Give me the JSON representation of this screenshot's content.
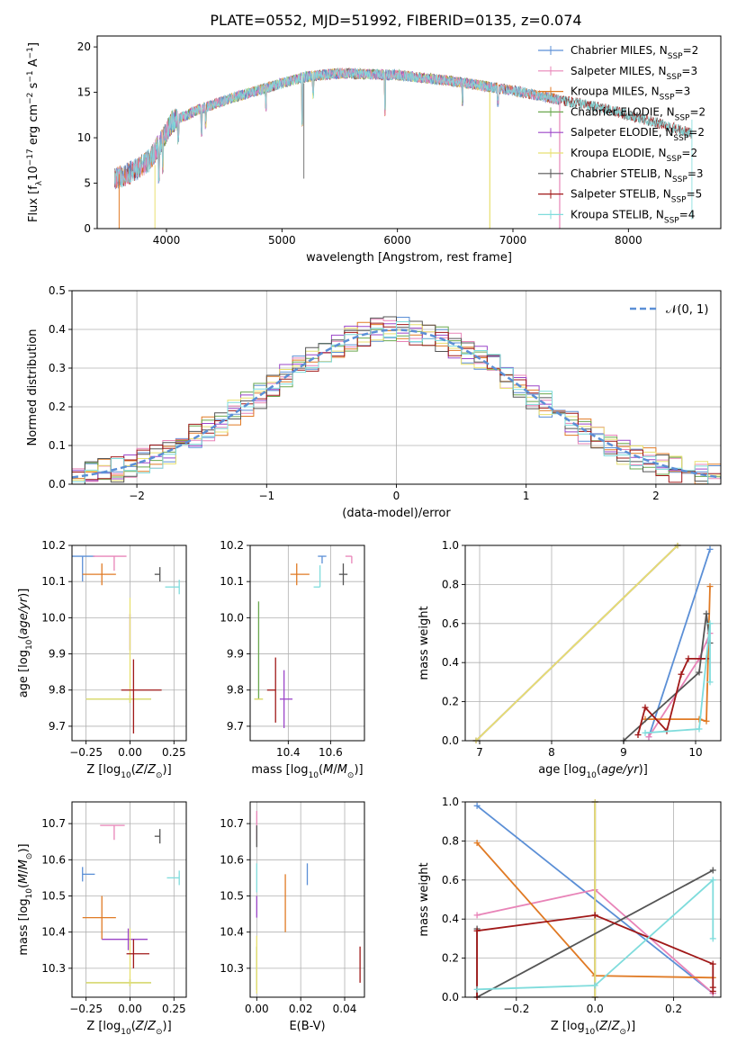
{
  "figure": {
    "title": "PLATE=0552, MJD=51992, FIBERID=0135, z=0.074"
  },
  "colors": {
    "Chabrier MILES": "#5b8fd6",
    "Salpeter MILES": "#e884b8",
    "Kroupa MILES": "#e07a24",
    "Chabrier ELODIE": "#6aa84f",
    "Salpeter ELODIE": "#9b45c8",
    "Kroupa ELODIE": "#e8e070",
    "Chabrier STELIB": "#555555",
    "Salpeter STELIB": "#a01818",
    "Kroupa STELIB": "#7fdcdc",
    "normal": "#5b8fd6"
  },
  "chart_data": [
    {
      "id": "spectrum",
      "type": "line",
      "xlabel": "wavelength [Angstrom, rest frame]",
      "ylabel": "Flux [f_λ10^-17 erg cm^-2 s^-1 A^-1]",
      "xlim": [
        3400,
        8800
      ],
      "ylim": [
        0,
        21.2
      ],
      "xticks": [
        "4000",
        "5000",
        "6000",
        "7000",
        "8000"
      ],
      "yticks": [
        "0",
        "5",
        "10",
        "15",
        "20"
      ],
      "legend_loc": "upper-right",
      "legend": [
        {
          "model": "Chabrier MILES",
          "nssp": "2"
        },
        {
          "model": "Salpeter MILES",
          "nssp": "3"
        },
        {
          "model": "Kroupa MILES",
          "nssp": "3"
        },
        {
          "model": "Chabrier ELODIE",
          "nssp": "2"
        },
        {
          "model": "Salpeter ELODIE",
          "nssp": "2"
        },
        {
          "model": "Kroupa ELODIE",
          "nssp": "2"
        },
        {
          "model": "Chabrier STELIB",
          "nssp": "3"
        },
        {
          "model": "Salpeter STELIB",
          "nssp": "5"
        },
        {
          "model": "Kroupa STELIB",
          "nssp": "4"
        }
      ],
      "continuum": [
        [
          3550,
          5.5
        ],
        [
          3700,
          6.2
        ],
        [
          3850,
          7.5
        ],
        [
          3950,
          9.5
        ],
        [
          4050,
          11.8
        ],
        [
          4300,
          13.2
        ],
        [
          4600,
          14.5
        ],
        [
          5000,
          16.0
        ],
        [
          5200,
          16.7
        ],
        [
          5500,
          17.1
        ],
        [
          6000,
          16.9
        ],
        [
          6500,
          16.2
        ],
        [
          7000,
          15.2
        ],
        [
          7400,
          14.2
        ],
        [
          7800,
          13.2
        ],
        [
          8200,
          11.8
        ],
        [
          8550,
          10.5
        ]
      ]
    },
    {
      "id": "residuals",
      "type": "histogram",
      "xlabel": "(data-model)/error",
      "ylabel": "Normed distribution",
      "xlim": [
        -2.5,
        2.5
      ],
      "ylim": [
        0,
        0.5
      ],
      "xticks": [
        "−2",
        "−1",
        "0",
        "1",
        "2"
      ],
      "yticks": [
        "0.0",
        "0.1",
        "0.2",
        "0.3",
        "0.4",
        "0.5"
      ],
      "legend": [
        "𝒩(0, 1)"
      ],
      "legend_loc": "upper-right",
      "bin_width": 0.1,
      "envelope": "normal(0,1) with scatter ±0.05"
    },
    {
      "id": "age-vs-Z",
      "type": "scatter",
      "xlabel": "Z [log10(Z/Z⊙)]",
      "ylabel": "age [log10(age/yr)]",
      "xlim": [
        -0.33,
        0.32
      ],
      "ylim": [
        9.66,
        10.2
      ],
      "xticks": [
        "−0.25",
        "0.00",
        "0.25"
      ],
      "yticks": [
        "9.7",
        "9.8",
        "9.9",
        "10.0",
        "10.1",
        "10.2"
      ],
      "points": [
        {
          "model": "Chabrier MILES",
          "x": -0.27,
          "y": 10.17,
          "xerr": [
            0.27,
            0.07
          ],
          "yerr": [
            0.07,
            0.0
          ]
        },
        {
          "model": "Salpeter MILES",
          "x": -0.09,
          "y": 10.17,
          "xerr": [
            0.12,
            0.07
          ],
          "yerr": [
            0.04,
            0.0
          ]
        },
        {
          "model": "Kroupa MILES",
          "x": -0.16,
          "y": 10.12,
          "xerr": [
            0.11,
            0.08
          ],
          "yerr": [
            0.03,
            0.03
          ]
        },
        {
          "model": "Chabrier ELODIE",
          "x": 0.0,
          "y": 9.775,
          "xerr": [
            0.25,
            0.12
          ],
          "yerr": [
            0.01,
            0.01
          ]
        },
        {
          "model": "Salpeter ELODIE",
          "x": 0.0,
          "y": 9.96,
          "xerr": [
            0.0,
            0.0
          ],
          "yerr": [
            0.05,
            0.05
          ]
        },
        {
          "model": "Kroupa ELODIE",
          "x": 0.0,
          "y": 9.775,
          "xerr": [
            0.25,
            0.12
          ],
          "yerr": [
            0.01,
            0.28
          ]
        },
        {
          "model": "Chabrier STELIB",
          "x": 0.17,
          "y": 10.12,
          "xerr": [
            0.03,
            0.0
          ],
          "yerr": [
            0.02,
            0.02
          ]
        },
        {
          "model": "Salpeter STELIB",
          "x": 0.02,
          "y": 9.8,
          "xerr": [
            0.07,
            0.16
          ],
          "yerr": [
            0.12,
            0.085
          ]
        },
        {
          "model": "Kroupa STELIB",
          "x": 0.28,
          "y": 10.085,
          "xerr": [
            0.08,
            0.0
          ],
          "yerr": [
            0.02,
            0.02
          ]
        }
      ]
    },
    {
      "id": "age-vs-mass",
      "type": "scatter",
      "xlabel": "mass [log10(M/M⊙)]",
      "ylabel": "",
      "xlim": [
        10.22,
        10.76
      ],
      "ylim": [
        9.66,
        10.2
      ],
      "xticks": [
        "10.4",
        "10.6"
      ],
      "yticks": [
        "9.7",
        "9.8",
        "9.9",
        "10.0",
        "10.1",
        "10.2"
      ],
      "points": [
        {
          "model": "Chabrier MILES",
          "x": 10.56,
          "y": 10.17,
          "xerr": [
            0.02,
            0.02
          ],
          "yerr": [
            0.02,
            0.0
          ]
        },
        {
          "model": "Salpeter MILES",
          "x": 10.7,
          "y": 10.17,
          "xerr": [
            0.03,
            0.0
          ],
          "yerr": [
            0.02,
            0.0
          ]
        },
        {
          "model": "Kroupa MILES",
          "x": 10.44,
          "y": 10.12,
          "xerr": [
            0.03,
            0.06
          ],
          "yerr": [
            0.03,
            0.03
          ]
        },
        {
          "model": "Chabrier ELODIE",
          "x": 10.26,
          "y": 9.775,
          "xerr": [
            0.02,
            0.02
          ],
          "yerr": [
            0.0,
            0.27
          ]
        },
        {
          "model": "Salpeter ELODIE",
          "x": 10.38,
          "y": 9.775,
          "xerr": [
            0.02,
            0.04
          ],
          "yerr": [
            0.08,
            0.08
          ]
        },
        {
          "model": "Kroupa ELODIE",
          "x": 10.26,
          "y": 9.775,
          "xerr": [
            0.02,
            0.02
          ],
          "yerr": [
            0.0,
            0.0
          ]
        },
        {
          "model": "Chabrier STELIB",
          "x": 10.66,
          "y": 10.12,
          "xerr": [
            0.02,
            0.02
          ],
          "yerr": [
            0.03,
            0.03
          ]
        },
        {
          "model": "Salpeter STELIB",
          "x": 10.34,
          "y": 9.8,
          "xerr": [
            0.04,
            0.0
          ],
          "yerr": [
            0.09,
            0.09
          ]
        },
        {
          "model": "Kroupa STELIB",
          "x": 10.55,
          "y": 10.085,
          "xerr": [
            0.03,
            0.0
          ],
          "yerr": [
            0.0,
            0.06
          ]
        }
      ]
    },
    {
      "id": "weight-vs-age",
      "type": "line",
      "xlabel": "age [log10(age/yr)]",
      "ylabel": "mass weight",
      "xlim": [
        6.8,
        10.35
      ],
      "ylim": [
        0,
        1.0
      ],
      "xticks": [
        "7",
        "8",
        "9",
        "10"
      ],
      "yticks": [
        "0.0",
        "0.2",
        "0.4",
        "0.6",
        "0.8",
        "1.0"
      ],
      "series": [
        {
          "model": "Chabrier MILES",
          "x": [
            9.35,
            10.2
          ],
          "y": [
            0.02,
            0.98
          ]
        },
        {
          "model": "Salpeter MILES",
          "x": [
            9.35,
            10.05,
            10.2
          ],
          "y": [
            0.02,
            0.42,
            0.55
          ]
        },
        {
          "model": "Kroupa MILES",
          "x": [
            9.3,
            10.05,
            10.15,
            10.2
          ],
          "y": [
            0.11,
            0.11,
            0.1,
            0.79
          ]
        },
        {
          "model": "Chabrier ELODIE",
          "x": [
            6.95,
            9.75
          ],
          "y": [
            0.0,
            1.0
          ]
        },
        {
          "model": "Salpeter ELODIE",
          "x": [
            6.95,
            9.75
          ],
          "y": [
            0.0,
            1.0
          ]
        },
        {
          "model": "Kroupa ELODIE",
          "x": [
            6.95,
            9.75
          ],
          "y": [
            0.0,
            1.0
          ]
        },
        {
          "model": "Chabrier STELIB",
          "x": [
            9.0,
            10.05,
            10.15,
            10.2
          ],
          "y": [
            0.0,
            0.35,
            0.65,
            0.5
          ]
        },
        {
          "model": "Salpeter STELIB",
          "x": [
            9.2,
            9.3,
            9.6,
            9.8,
            9.9,
            10.15
          ],
          "y": [
            0.03,
            0.17,
            0.05,
            0.34,
            0.42,
            0.42
          ]
        },
        {
          "model": "Kroupa STELIB",
          "x": [
            9.3,
            10.05,
            10.2,
            10.2
          ],
          "y": [
            0.04,
            0.06,
            0.6,
            0.3
          ]
        }
      ]
    },
    {
      "id": "mass-vs-Z",
      "type": "scatter",
      "xlabel": "Z [log10(Z/Z⊙)]",
      "ylabel": "mass [log10(M/M⊙)]",
      "xlim": [
        -0.33,
        0.32
      ],
      "ylim": [
        10.22,
        10.76
      ],
      "xticks": [
        "−0.25",
        "0.00",
        "0.25"
      ],
      "yticks": [
        "10.3",
        "10.4",
        "10.5",
        "10.6",
        "10.7"
      ],
      "points": [
        {
          "model": "Chabrier MILES",
          "x": -0.27,
          "y": 10.56,
          "xerr": [
            0.0,
            0.07
          ],
          "yerr": [
            0.02,
            0.02
          ]
        },
        {
          "model": "Salpeter MILES",
          "x": -0.09,
          "y": 10.695,
          "xerr": [
            0.08,
            0.06
          ],
          "yerr": [
            0.04,
            0.0
          ]
        },
        {
          "model": "Kroupa MILES",
          "x": -0.16,
          "y": 10.44,
          "xerr": [
            0.11,
            0.08
          ],
          "yerr": [
            0.06,
            0.06
          ]
        },
        {
          "model": "Chabrier ELODIE",
          "x": 0.0,
          "y": 10.26,
          "xerr": [
            0.25,
            0.12
          ],
          "yerr": [
            0.01,
            0.01
          ]
        },
        {
          "model": "Salpeter ELODIE",
          "x": -0.01,
          "y": 10.38,
          "xerr": [
            0.15,
            0.11
          ],
          "yerr": [
            0.03,
            0.03
          ]
        },
        {
          "model": "Kroupa ELODIE",
          "x": 0.0,
          "y": 10.26,
          "xerr": [
            0.25,
            0.12
          ],
          "yerr": [
            0.01,
            0.15
          ]
        },
        {
          "model": "Chabrier STELIB",
          "x": 0.17,
          "y": 10.665,
          "xerr": [
            0.03,
            0.0
          ],
          "yerr": [
            0.02,
            0.02
          ]
        },
        {
          "model": "Salpeter STELIB",
          "x": 0.02,
          "y": 10.34,
          "xerr": [
            0.04,
            0.09
          ],
          "yerr": [
            0.04,
            0.04
          ]
        },
        {
          "model": "Kroupa STELIB",
          "x": 0.28,
          "y": 10.55,
          "xerr": [
            0.07,
            0.0
          ],
          "yerr": [
            0.02,
            0.02
          ]
        }
      ]
    },
    {
      "id": "mass-vs-EBV",
      "type": "scatter",
      "xlabel": "E(B-V)",
      "ylabel": "",
      "xlim": [
        -0.003,
        0.049
      ],
      "ylim": [
        10.22,
        10.76
      ],
      "xticks": [
        "0.00",
        "0.02",
        "0.04"
      ],
      "yticks": [
        "10.3",
        "10.4",
        "10.5",
        "10.6",
        "10.7"
      ],
      "points": [
        {
          "model": "Chabrier MILES",
          "x": 0.023,
          "y": 10.56,
          "xerr": [
            0,
            0
          ],
          "yerr": [
            0.03,
            0.03
          ]
        },
        {
          "model": "Salpeter MILES",
          "x": 0.0,
          "y": 10.695,
          "xerr": [
            0,
            0
          ],
          "yerr": [
            0.04,
            0.04
          ]
        },
        {
          "model": "Kroupa MILES",
          "x": 0.013,
          "y": 10.48,
          "xerr": [
            0,
            0
          ],
          "yerr": [
            0.08,
            0.08
          ]
        },
        {
          "model": "Chabrier ELODIE",
          "x": 0.0,
          "y": 10.3,
          "xerr": [
            0,
            0
          ],
          "yerr": [
            0.06,
            0.06
          ]
        },
        {
          "model": "Salpeter ELODIE",
          "x": 0.0,
          "y": 10.47,
          "xerr": [
            0,
            0
          ],
          "yerr": [
            0.03,
            0.03
          ]
        },
        {
          "model": "Kroupa ELODIE",
          "x": 0.0,
          "y": 10.31,
          "xerr": [
            0,
            0
          ],
          "yerr": [
            0.08,
            0.08
          ]
        },
        {
          "model": "Chabrier STELIB",
          "x": 0.0,
          "y": 10.665,
          "xerr": [
            0,
            0
          ],
          "yerr": [
            0.03,
            0.03
          ]
        },
        {
          "model": "Salpeter STELIB",
          "x": 0.047,
          "y": 10.31,
          "xerr": [
            0,
            0
          ],
          "yerr": [
            0.05,
            0.05
          ]
        },
        {
          "model": "Kroupa STELIB",
          "x": 0.0,
          "y": 10.55,
          "xerr": [
            0,
            0
          ],
          "yerr": [
            0.04,
            0.04
          ]
        }
      ]
    },
    {
      "id": "weight-vs-Z",
      "type": "line",
      "xlabel": "Z [log10(Z/Z⊙)]",
      "ylabel": "mass weight",
      "xlim": [
        -0.33,
        0.32
      ],
      "ylim": [
        0,
        1.0
      ],
      "xticks": [
        "−0.2",
        "0.0",
        "0.2"
      ],
      "yticks": [
        "0.0",
        "0.2",
        "0.4",
        "0.6",
        "0.8",
        "1.0"
      ],
      "series": [
        {
          "model": "Chabrier MILES",
          "x": [
            -0.3,
            0.3
          ],
          "y": [
            0.98,
            0.02
          ]
        },
        {
          "model": "Salpeter MILES",
          "x": [
            -0.3,
            0.0,
            0.3
          ],
          "y": [
            0.42,
            0.55,
            0.02
          ]
        },
        {
          "model": "Kroupa MILES",
          "x": [
            -0.3,
            0.0,
            0.3
          ],
          "y": [
            0.79,
            0.11,
            0.1
          ]
        },
        {
          "model": "Chabrier ELODIE",
          "x": [
            0.0,
            0.0
          ],
          "y": [
            0.0,
            1.0
          ]
        },
        {
          "model": "Salpeter ELODIE",
          "x": [
            0.0,
            0.0
          ],
          "y": [
            0.0,
            1.0
          ]
        },
        {
          "model": "Kroupa ELODIE",
          "x": [
            0.0,
            0.0
          ],
          "y": [
            0.0,
            1.0
          ]
        },
        {
          "model": "Chabrier STELIB",
          "x": [
            -0.3,
            -0.3,
            0.3
          ],
          "y": [
            0.35,
            0.0,
            0.65
          ]
        },
        {
          "model": "Salpeter STELIB",
          "x": [
            -0.3,
            -0.3,
            0.0,
            0.3,
            0.3,
            0.3
          ],
          "y": [
            0.0,
            0.34,
            0.42,
            0.17,
            0.05,
            0.03
          ]
        },
        {
          "model": "Kroupa STELIB",
          "x": [
            -0.3,
            0.0,
            0.3,
            0.3
          ],
          "y": [
            0.04,
            0.06,
            0.6,
            0.3
          ]
        }
      ]
    }
  ]
}
